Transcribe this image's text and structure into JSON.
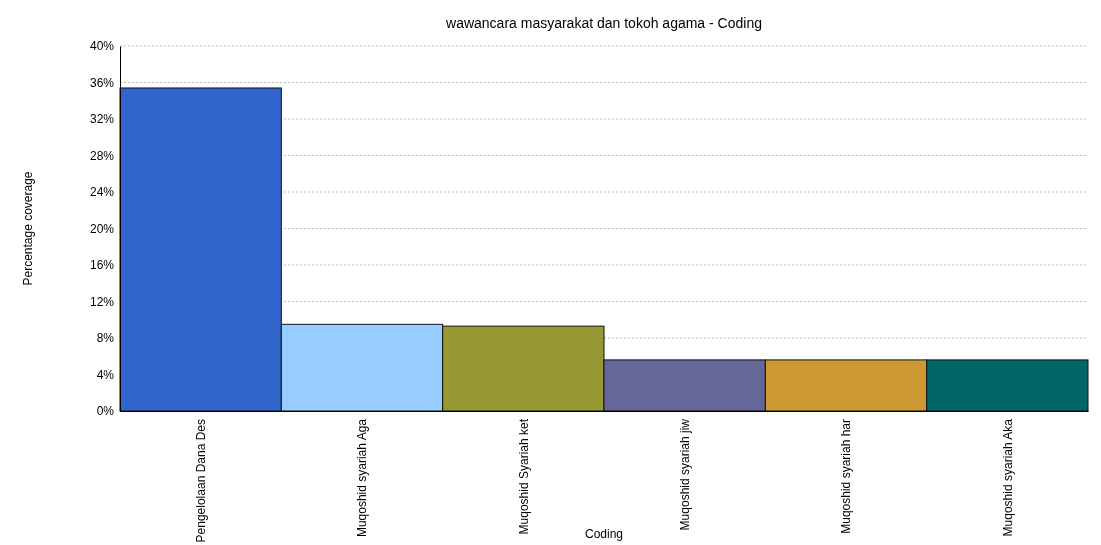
{
  "chart_data": {
    "type": "bar",
    "title": "wawancara masyarakat dan tokoh agama - Coding",
    "xlabel": "Coding",
    "ylabel": "Percentage coverage",
    "categories": [
      "Pengelolaan Dana Des",
      "Muqoshid syariah Aga",
      "Muqoshid Syariah ket",
      "Muqoshid syariah jiw",
      "Muqoshid syariah har",
      "Muqoshid syariah Aka"
    ],
    "values": [
      35.4,
      9.5,
      9.3,
      5.6,
      5.6,
      5.6
    ],
    "colors": [
      "#3366cc",
      "#99ccff",
      "#999933",
      "#666699",
      "#cc9933",
      "#006666"
    ],
    "ylim": [
      0,
      40
    ],
    "yticks": [
      {
        "value": 0,
        "label": "0%"
      },
      {
        "value": 4,
        "label": "4%"
      },
      {
        "value": 8,
        "label": "8%"
      },
      {
        "value": 12,
        "label": "12%"
      },
      {
        "value": 16,
        "label": "16%"
      },
      {
        "value": 20,
        "label": "20%"
      },
      {
        "value": 24,
        "label": "24%"
      },
      {
        "value": 28,
        "label": "28%"
      },
      {
        "value": 32,
        "label": "32%"
      },
      {
        "value": 36,
        "label": "36%"
      },
      {
        "value": 40,
        "label": "40%"
      }
    ],
    "grid": "y"
  }
}
